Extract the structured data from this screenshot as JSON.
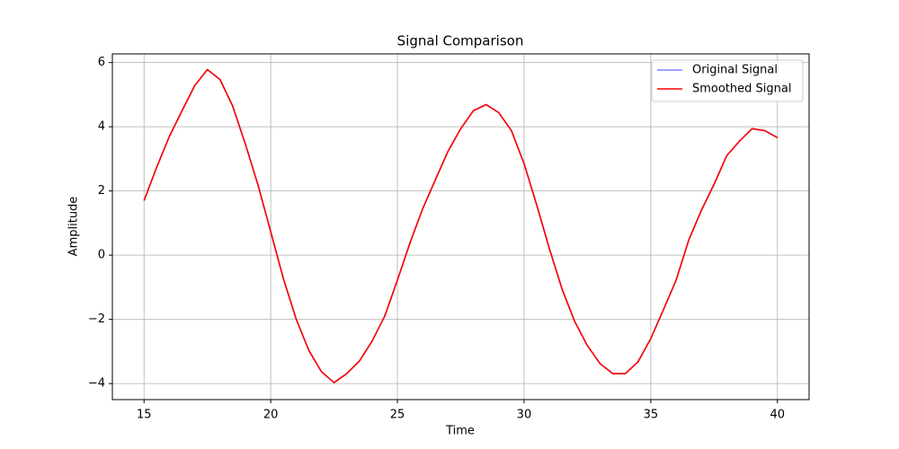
{
  "chart_data": {
    "type": "line",
    "title": "Signal Comparison",
    "xlabel": "Time",
    "ylabel": "Amplitude",
    "x": [
      15,
      15.5,
      16,
      16.5,
      17,
      17.5,
      18,
      18.5,
      19,
      19.5,
      20,
      20.5,
      21,
      21.5,
      22,
      22.5,
      23,
      23.5,
      24,
      24.5,
      25,
      25.5,
      26,
      26.5,
      27,
      27.5,
      28,
      28.5,
      29,
      29.5,
      30,
      30.5,
      31,
      31.5,
      32,
      32.5,
      33,
      33.5,
      34,
      34.5,
      35,
      35.5,
      36,
      36.5,
      37,
      37.5,
      38,
      38.5,
      39,
      39.5,
      40
    ],
    "series": [
      {
        "name": "Original Signal",
        "color": "#0000ff",
        "alpha": 0.5,
        "values": [
          1.7,
          2.74,
          3.7,
          4.5,
          5.28,
          5.78,
          5.47,
          4.64,
          3.46,
          2.18,
          0.73,
          -0.73,
          -1.98,
          -2.96,
          -3.63,
          -3.97,
          -3.69,
          -3.3,
          -2.68,
          -1.9,
          -0.78,
          0.39,
          1.45,
          2.35,
          3.24,
          3.94,
          4.5,
          4.69,
          4.44,
          3.88,
          2.85,
          1.56,
          0.2,
          -1.06,
          -2.07,
          -2.82,
          -3.38,
          -3.69,
          -3.69,
          -3.32,
          -2.6,
          -1.7,
          -0.78,
          0.47,
          1.4,
          2.21,
          3.1,
          3.55,
          3.94,
          3.88,
          3.66
        ]
      },
      {
        "name": "Smoothed Signal",
        "color": "#ff0000",
        "alpha": 1,
        "values": [
          1.7,
          2.74,
          3.7,
          4.5,
          5.28,
          5.78,
          5.47,
          4.64,
          3.46,
          2.18,
          0.73,
          -0.73,
          -1.98,
          -2.96,
          -3.63,
          -3.97,
          -3.69,
          -3.3,
          -2.68,
          -1.9,
          -0.78,
          0.39,
          1.45,
          2.35,
          3.24,
          3.94,
          4.5,
          4.69,
          4.44,
          3.88,
          2.85,
          1.56,
          0.2,
          -1.06,
          -2.07,
          -2.82,
          -3.38,
          -3.69,
          -3.69,
          -3.32,
          -2.6,
          -1.7,
          -0.78,
          0.47,
          1.4,
          2.21,
          3.1,
          3.55,
          3.94,
          3.88,
          3.66
        ]
      }
    ],
    "xlim": [
      13.75,
      41.25
    ],
    "xticks": [
      15,
      20,
      25,
      30,
      35,
      40
    ],
    "ylim": [
      -4.5,
      6.27
    ],
    "yticks": [
      {
        "value": -4,
        "label": "−4"
      },
      {
        "value": -2,
        "label": "−2"
      },
      0,
      2,
      4,
      6
    ],
    "grid": true,
    "legend": "upper right"
  }
}
